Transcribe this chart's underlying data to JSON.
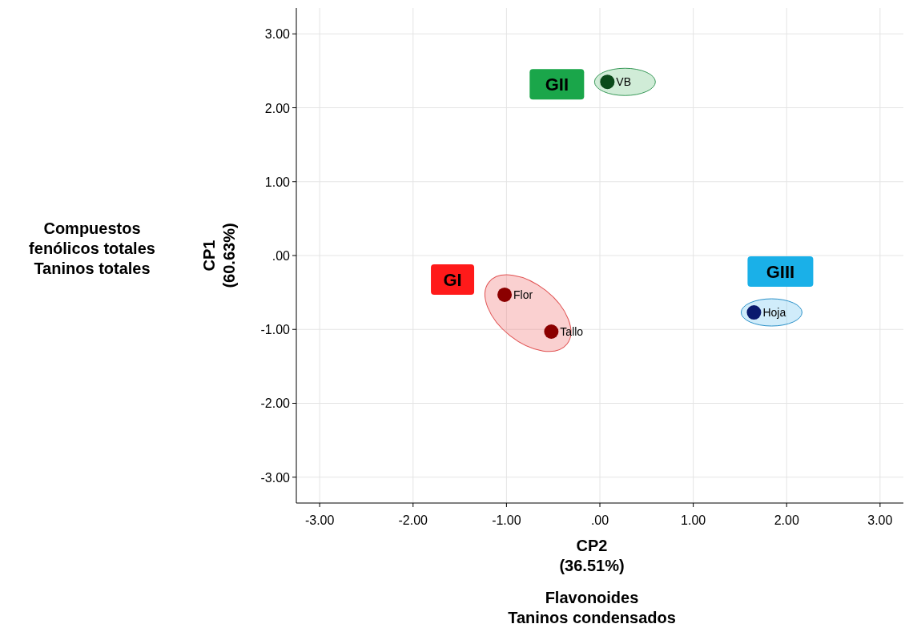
{
  "chart_data": {
    "type": "scatter",
    "xlabel": "CP2\n(36.51%)",
    "ylabel": "CP1\n(60.63%)",
    "xlim": [
      -3.25,
      3.25
    ],
    "ylim": [
      -3.35,
      3.35
    ],
    "xticks": [
      {
        "value": -3,
        "label": "-3.00"
      },
      {
        "value": -2,
        "label": "-2.00"
      },
      {
        "value": -1,
        "label": "-1.00"
      },
      {
        "value": 0,
        "label": ".00"
      },
      {
        "value": 1,
        "label": "1.00"
      },
      {
        "value": 2,
        "label": "2.00"
      },
      {
        "value": 3,
        "label": "3.00"
      }
    ],
    "yticks": [
      {
        "value": -3,
        "label": "-3.00"
      },
      {
        "value": -2,
        "label": "-2.00"
      },
      {
        "value": -1,
        "label": "-1.00"
      },
      {
        "value": 0,
        "label": ".00"
      },
      {
        "value": 1,
        "label": "1.00"
      },
      {
        "value": 2,
        "label": "2.00"
      },
      {
        "value": 3,
        "label": "3.00"
      }
    ],
    "grid": true,
    "marker": "circle",
    "series": [
      {
        "name": "Flor",
        "color": "#8b0000",
        "x": [
          -1.02
        ],
        "values": [
          -0.53
        ]
      },
      {
        "name": "Tallo",
        "color": "#8b0000",
        "x": [
          -0.52
        ],
        "values": [
          -1.03
        ]
      },
      {
        "name": "VB",
        "color": "#0a4a1a",
        "x": [
          0.08
        ],
        "values": [
          2.35
        ]
      },
      {
        "name": "Hoja",
        "color": "#0a1a6e",
        "x": [
          1.65
        ],
        "values": [
          -0.77
        ]
      }
    ],
    "annotations": [
      "GI",
      "GII",
      "GIII",
      "Compuestos\nfenólicos totales\nTaninos totales",
      "Flavonoides\nTaninos condensados"
    ]
  }
}
